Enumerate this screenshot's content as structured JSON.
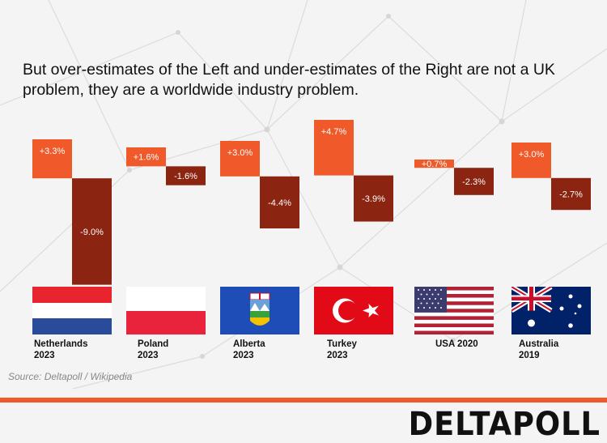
{
  "title": "But over-estimates of the Left and under-estimates of the Right are not a UK problem, they are a worldwide industry problem.",
  "source": "Source: Deltapoll / Wikipedia",
  "logo": "DELTAPOLL",
  "colors": {
    "left": "#f05a2a",
    "right": "#8b2410",
    "rule": "#f05a2a"
  },
  "chart_data": {
    "type": "bar",
    "categories": [
      "Netherlands 2023",
      "Poland 2023",
      "Alberta 2023",
      "Turkey 2023",
      "USA 2020",
      "Australia 2019"
    ],
    "series": [
      {
        "values": [
          3.3,
          1.6,
          3.0,
          4.7,
          0.7,
          3.0
        ],
        "labels": [
          "+3.3%",
          "+1.6%",
          "+3.0%",
          "+4.7%",
          "+0.7%",
          "+3.0%"
        ]
      },
      {
        "values": [
          -9.0,
          -1.6,
          -4.4,
          -3.9,
          -2.3,
          -2.7
        ],
        "labels": [
          "-9.0%",
          "-1.6%",
          "-4.4%",
          "-3.9%",
          "-2.3%",
          "-2.7%"
        ]
      }
    ]
  },
  "countries": [
    {
      "name": "Netherlands",
      "year": "2023",
      "flag": "netherlands-flag"
    },
    {
      "name": "Poland",
      "year": "2023",
      "flag": "poland-flag"
    },
    {
      "name": "Alberta",
      "year": "2023",
      "flag": "alberta-flag"
    },
    {
      "name": "Turkey",
      "year": "2023",
      "flag": "turkey-flag"
    },
    {
      "name": "USA 2020",
      "year": "",
      "flag": "usa-flag"
    },
    {
      "name": "Australia",
      "year": "2019",
      "flag": "australia-flag"
    }
  ]
}
